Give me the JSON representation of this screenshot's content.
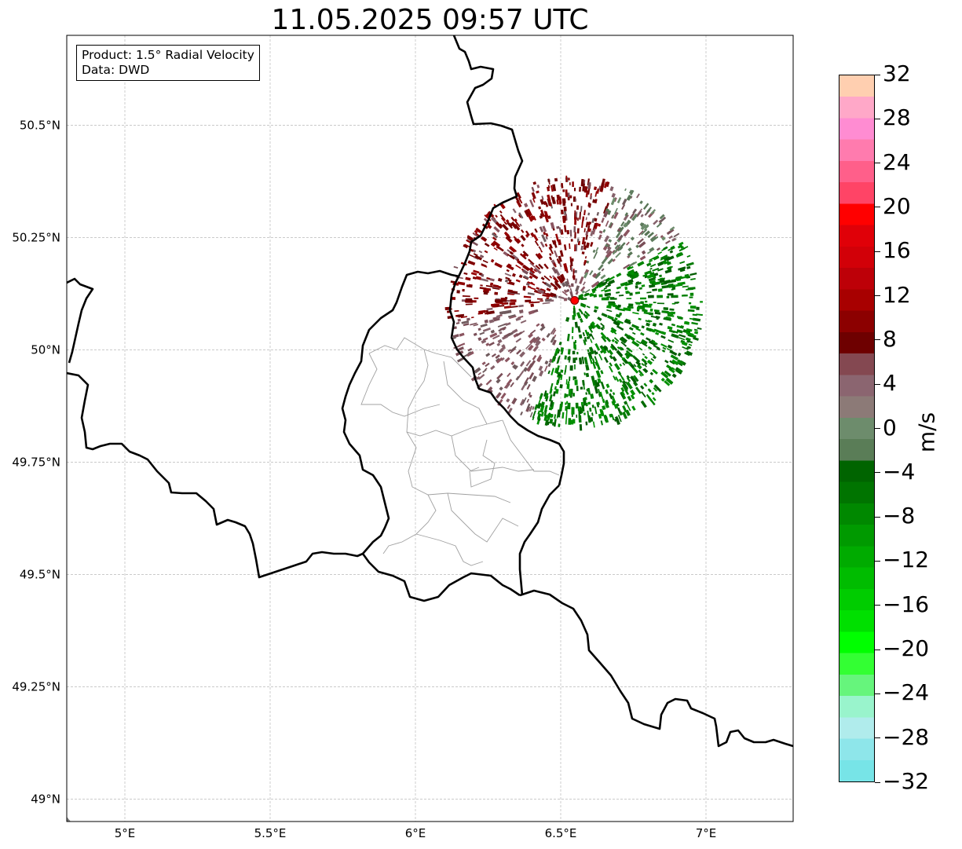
{
  "title": "11.05.2025 09:57 UTC",
  "info": {
    "product": "Product: 1.5° Radial Velocity",
    "data": "Data: DWD"
  },
  "map": {
    "lon_range": [
      4.8,
      7.3
    ],
    "lat_range": [
      48.95,
      50.7
    ],
    "lon_ticks": [
      5.0,
      5.5,
      6.0,
      6.5,
      7.0
    ],
    "lon_tick_labels": [
      "5°E",
      "5.5°E",
      "6°E",
      "6.5°E",
      "7°E"
    ],
    "lat_ticks": [
      50.5,
      50.25,
      50.0,
      49.75,
      49.5,
      49.25,
      49.0
    ],
    "lat_tick_labels": [
      "50.5°N",
      "50.25°N",
      "50°N",
      "49.75°N",
      "49.5°N",
      "49.25°N",
      "49°N"
    ],
    "gridlines": true,
    "radar_site": {
      "lon": 6.548,
      "lat": 50.11
    },
    "colors": {
      "border": "#000000",
      "admin": "#a0a0a0",
      "grid": "#b8b8b8",
      "radar_marker": "#ff0000"
    }
  },
  "colorbar": {
    "unit": "m/s",
    "range": [
      -32,
      32
    ],
    "tick_labels": [
      "32",
      "28",
      "24",
      "20",
      "16",
      "12",
      "8",
      "4",
      "0",
      "−4",
      "−8",
      "−12",
      "−16",
      "−20",
      "−24",
      "−28",
      "−32"
    ],
    "colors_top_to_bottom": [
      "#ffcfb0",
      "#ffa8c8",
      "#ff8cd2",
      "#ff7bae",
      "#ff5f8a",
      "#ff4466",
      "#ff0000",
      "#e00008",
      "#d20008",
      "#bd0008",
      "#a80000",
      "#8c0000",
      "#6e0000",
      "#844851",
      "#8b6570",
      "#8c7a77",
      "#6d8c6c",
      "#5a7d57",
      "#006400",
      "#007400",
      "#008800",
      "#009a00",
      "#00ab00",
      "#00bc00",
      "#00cc00",
      "#00e000",
      "#00ff00",
      "#33ff33",
      "#66f57c",
      "#99f4cc",
      "#b0ecec",
      "#8ee6ea",
      "#77e4e7"
    ]
  }
}
